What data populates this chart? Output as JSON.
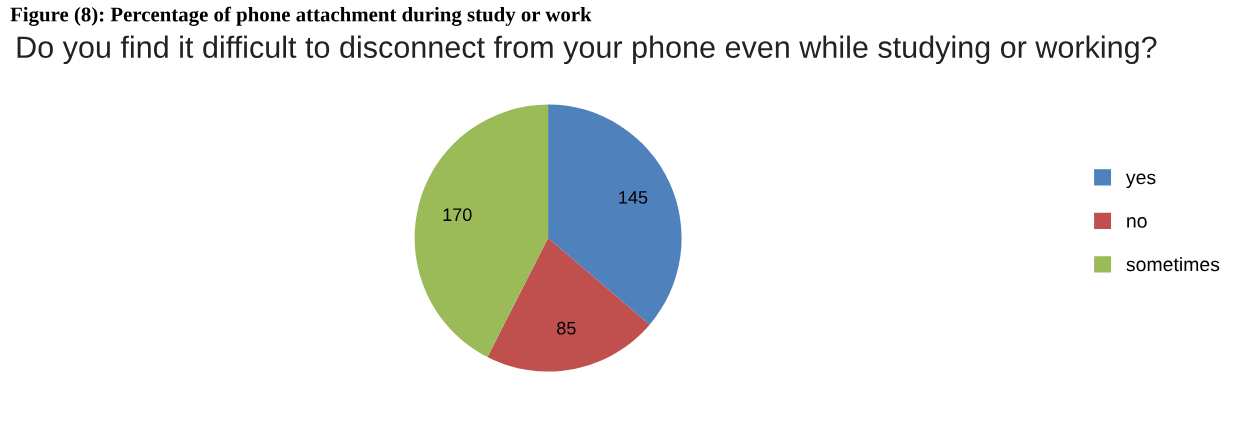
{
  "chart_data": {
    "type": "pie",
    "title": "Figure (8): Percentage of phone attachment during study or work",
    "subtitle": "Do you find it difficult to disconnect from your phone even while studying or working?",
    "categories": [
      "yes",
      "no",
      "sometimes"
    ],
    "values": [
      145,
      85,
      170
    ],
    "colors": [
      "#4f81bd",
      "#c0504d",
      "#9bbb59"
    ],
    "data_labels": true,
    "legend": "right"
  }
}
